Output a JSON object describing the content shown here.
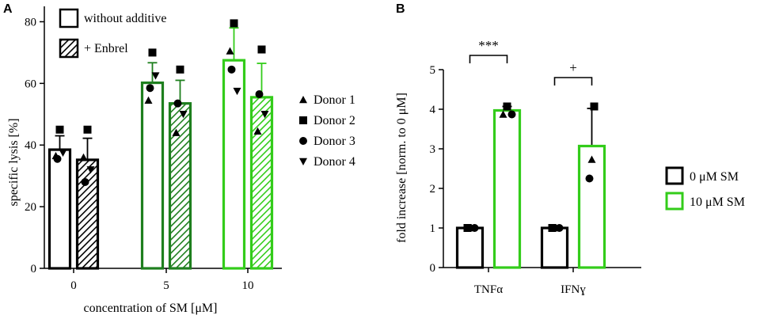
{
  "chart_data": [
    {
      "panel": "A",
      "type": "bar",
      "ylabel": "specific lysis [%]",
      "xlabel": "concentration of SM [μM]",
      "ylim": [
        0,
        85
      ],
      "yticks": [
        0,
        20,
        40,
        60,
        80
      ],
      "categories": [
        "0",
        "5",
        "10"
      ],
      "colors": {
        "0": "#000000",
        "5": "#1e7f1e",
        "10": "#33cc1a"
      },
      "series": [
        {
          "name": "without additive",
          "pattern": "solid",
          "values": [
            38.5,
            60.2,
            67.5
          ],
          "errors": [
            4.5,
            6.5,
            10.5
          ]
        },
        {
          "name": "+ Enbrel",
          "pattern": "hatched",
          "values": [
            35.2,
            53.5,
            55.5
          ],
          "errors": [
            7.0,
            7.5,
            11.0
          ]
        }
      ],
      "donor_points": [
        {
          "category": "0",
          "series": "without additive",
          "points": [
            {
              "donor": "Donor 1",
              "value": 36.5
            },
            {
              "donor": "Donor 2",
              "value": 45.0
            },
            {
              "donor": "Donor 3",
              "value": 35.5
            },
            {
              "donor": "Donor 4",
              "value": 37.5
            }
          ]
        },
        {
          "category": "0",
          "series": "+ Enbrel",
          "points": [
            {
              "donor": "Donor 1",
              "value": 36.0
            },
            {
              "donor": "Donor 2",
              "value": 45.0
            },
            {
              "donor": "Donor 3",
              "value": 28.0
            },
            {
              "donor": "Donor 4",
              "value": 32.0
            }
          ]
        },
        {
          "category": "5",
          "series": "without additive",
          "points": [
            {
              "donor": "Donor 1",
              "value": 54.5
            },
            {
              "donor": "Donor 2",
              "value": 70.0
            },
            {
              "donor": "Donor 3",
              "value": 58.5
            },
            {
              "donor": "Donor 4",
              "value": 62.5
            }
          ]
        },
        {
          "category": "5",
          "series": "+ Enbrel",
          "points": [
            {
              "donor": "Donor 1",
              "value": 44.0
            },
            {
              "donor": "Donor 2",
              "value": 64.5
            },
            {
              "donor": "Donor 3",
              "value": 53.5
            },
            {
              "donor": "Donor 4",
              "value": 50.0
            }
          ]
        },
        {
          "category": "10",
          "series": "without additive",
          "points": [
            {
              "donor": "Donor 1",
              "value": 70.5
            },
            {
              "donor": "Donor 2",
              "value": 79.5
            },
            {
              "donor": "Donor 3",
              "value": 64.5
            },
            {
              "donor": "Donor 4",
              "value": 57.5
            }
          ]
        },
        {
          "category": "10",
          "series": "+ Enbrel",
          "points": [
            {
              "donor": "Donor 1",
              "value": 44.5
            },
            {
              "donor": "Donor 2",
              "value": 71.0
            },
            {
              "donor": "Donor 3",
              "value": 56.5
            },
            {
              "donor": "Donor 4",
              "value": 50.0
            }
          ]
        }
      ],
      "legend": [
        "without additive",
        "+ Enbrel"
      ],
      "donor_legend": [
        "Donor 1",
        "Donor 2",
        "Donor 3",
        "Donor 4"
      ],
      "donor_markers": {
        "Donor 1": "triangle-up",
        "Donor 2": "square",
        "Donor 3": "circle",
        "Donor 4": "triangle-down"
      }
    },
    {
      "panel": "B",
      "type": "bar",
      "ylabel": "fold increase [norm. to 0 μM]",
      "ylim": [
        0,
        5
      ],
      "yticks": [
        0,
        1,
        2,
        3,
        4,
        5
      ],
      "categories": [
        "TNFα",
        "IFNɣ"
      ],
      "series": [
        {
          "name": "0 μM SM",
          "color": "#000000",
          "values": [
            1.0,
            1.0
          ],
          "errors": [
            0.0,
            0.0
          ],
          "points": [
            [
              1.0,
              1.0,
              1.0
            ],
            [
              1.0,
              1.0,
              1.0
            ]
          ]
        },
        {
          "name": "10 μM SM",
          "color": "#33cc1a",
          "values": [
            3.97,
            3.07
          ],
          "errors": [
            0.1,
            0.95
          ],
          "points": [
            [
              4.07,
              3.87,
              3.87
            ],
            [
              4.07,
              2.73,
              2.25
            ]
          ]
        }
      ],
      "point_markers": [
        "square",
        "triangle-up",
        "circle"
      ],
      "significance": [
        {
          "category": "TNFα",
          "label": "***"
        },
        {
          "category": "IFNɣ",
          "label": "+"
        }
      ],
      "legend": [
        "0 μM SM",
        "10 μM SM"
      ]
    }
  ]
}
